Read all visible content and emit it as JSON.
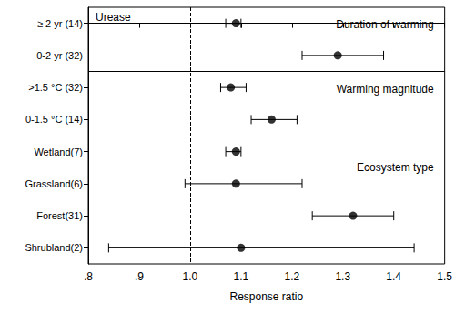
{
  "chart_data": {
    "type": "forest",
    "title": "Urease",
    "x_label": "Response ratio",
    "categories": [
      "≥ 2 yr (14)",
      "0-2 yr (32)",
      ">1.5 °C (32)",
      "0-1.5 °C (14)",
      "Wetland(7)",
      "Grassland(6)",
      "Forest(31)",
      "Shrubland(2)"
    ],
    "groups": [
      "Duration of warming",
      "Duration of warming",
      "Warming magnitude",
      "Warming magnitude",
      "Ecosystem type",
      "Ecosystem type",
      "Ecosystem type",
      "Ecosystem type"
    ],
    "values": [
      1.09,
      1.29,
      1.08,
      1.16,
      1.09,
      1.09,
      1.32,
      1.1
    ],
    "ci_low": [
      1.07,
      1.22,
      1.06,
      1.12,
      1.07,
      0.99,
      1.24,
      0.84
    ],
    "ci_high": [
      1.1,
      1.38,
      1.11,
      1.21,
      1.1,
      1.22,
      1.4,
      1.44
    ],
    "color": "#000000",
    "marker": "circle",
    "xlim": [
      0.8,
      1.5
    ],
    "xticks": [
      {
        "value": 0.8,
        "label": ".8"
      },
      {
        "value": 0.9,
        "label": ".9"
      },
      {
        "value": 1,
        "label": "1.0"
      },
      1.1,
      1.2,
      1.3,
      1.4,
      1.5
    ],
    "reference_line": 1,
    "grid": false
  }
}
